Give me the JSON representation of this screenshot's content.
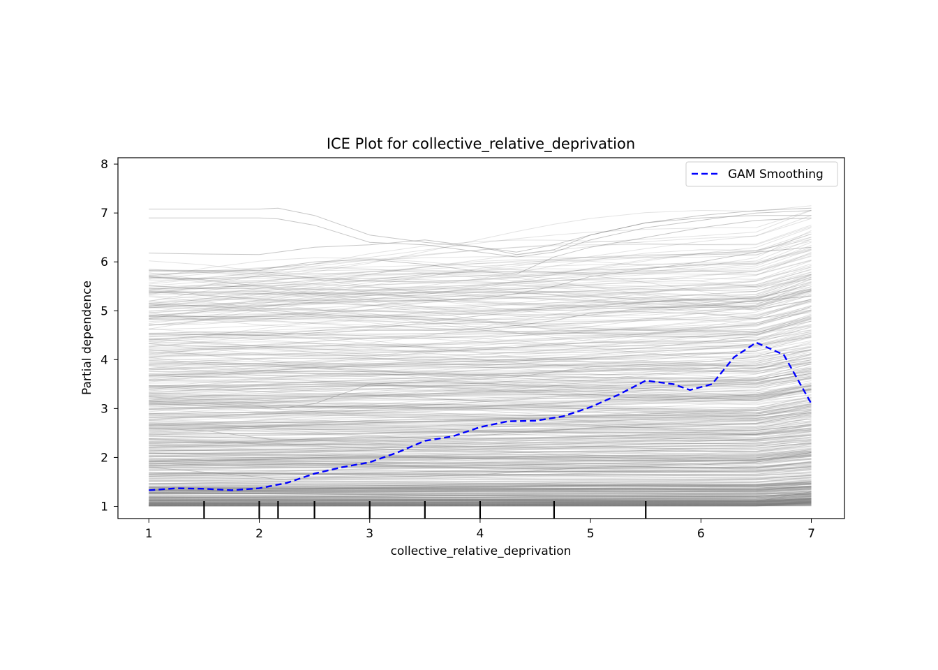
{
  "chart_data": {
    "type": "line",
    "title": "ICE Plot for collective_relative_deprivation",
    "xlabel": "collective_relative_deprivation",
    "ylabel": "Partial dependence",
    "xlim": [
      0.72,
      7.3
    ],
    "ylim": [
      0.75,
      8.13
    ],
    "x_ticks": [
      "1",
      "2",
      "3",
      "4",
      "5",
      "6",
      "7"
    ],
    "y_ticks": [
      "1",
      "2",
      "3",
      "4",
      "5",
      "6",
      "7",
      "8"
    ],
    "grid": false,
    "legend_position": "top-right",
    "legend": [
      {
        "label": "GAM Smoothing",
        "color": "#0000ff",
        "style": "dashed"
      }
    ],
    "ice_line_color": "#808080",
    "ice_grid_x": [
      1,
      1.5,
      2,
      2.17,
      2.5,
      3,
      3.5,
      4,
      4.33,
      4.67,
      5,
      5.5,
      6,
      6.5,
      7
    ],
    "ice_curves_shown": [
      {
        "y": [
          7.08,
          7.08,
          7.08,
          7.1,
          6.95,
          6.55,
          6.4,
          6.3,
          6.15,
          6.25,
          6.55,
          6.8,
          6.95,
          7.05,
          7.1
        ]
      },
      {
        "y": [
          6.9,
          6.9,
          6.9,
          6.88,
          6.75,
          6.4,
          6.35,
          6.2,
          6.1,
          6.2,
          6.45,
          6.7,
          6.85,
          7.0,
          7.05
        ]
      },
      {
        "y": [
          6.18,
          6.16,
          6.15,
          6.2,
          6.3,
          6.35,
          6.45,
          6.3,
          6.2,
          6.35,
          6.55,
          6.8,
          6.9,
          6.95,
          6.95
        ]
      },
      {
        "y": [
          5.82,
          5.82,
          5.82,
          5.9,
          6.0,
          6.05,
          5.95,
          5.8,
          5.75,
          6.1,
          6.3,
          6.5,
          6.7,
          6.85,
          6.9
        ]
      },
      {
        "y": [
          5.1,
          5.1,
          5.1,
          5.12,
          5.15,
          5.2,
          5.2,
          5.25,
          5.35,
          5.5,
          5.7,
          5.85,
          6.0,
          6.2,
          6.3
        ]
      },
      {
        "y": [
          4.52,
          4.52,
          4.5,
          4.5,
          4.55,
          4.6,
          4.6,
          4.62,
          4.7,
          4.8,
          4.95,
          5.05,
          5.1,
          5.2,
          5.3
        ]
      },
      {
        "y": [
          3.15,
          3.1,
          3.05,
          3.0,
          3.1,
          3.5,
          3.55,
          3.6,
          3.65,
          3.75,
          3.85,
          3.9,
          3.95,
          4.05,
          4.2
        ]
      },
      {
        "y": [
          2.6,
          2.55,
          2.4,
          2.35,
          2.38,
          2.4,
          2.42,
          2.45,
          2.5,
          2.55,
          2.6,
          2.62,
          2.65,
          2.7,
          2.9
        ]
      },
      {
        "y": [
          1.8,
          1.7,
          1.6,
          1.55,
          1.58,
          1.6,
          1.62,
          1.65,
          1.7,
          1.75,
          1.8,
          1.82,
          1.85,
          1.9,
          2.1
        ]
      },
      {
        "y": [
          1.02,
          1.02,
          1.02,
          1.02,
          1.02,
          1.02,
          1.03,
          1.03,
          1.04,
          1.05,
          1.06,
          1.07,
          1.08,
          1.1,
          1.3
        ]
      }
    ],
    "series": [
      {
        "name": "GAM Smoothing",
        "x": [
          1,
          1.25,
          1.5,
          1.75,
          2,
          2.25,
          2.5,
          2.75,
          3,
          3.25,
          3.5,
          3.75,
          4,
          4.25,
          4.5,
          4.75,
          5,
          5.25,
          5.5,
          5.75,
          5.9,
          6.1,
          6.3,
          6.5,
          6.75,
          7
        ],
        "y": [
          1.33,
          1.37,
          1.36,
          1.33,
          1.37,
          1.48,
          1.67,
          1.8,
          1.9,
          2.1,
          2.34,
          2.43,
          2.62,
          2.74,
          2.75,
          2.84,
          3.03,
          3.28,
          3.57,
          3.5,
          3.38,
          3.5,
          4.05,
          4.35,
          4.1,
          3.1
        ]
      }
    ],
    "rug_x": [
      1.5,
      2,
      2.17,
      2.5,
      3,
      3.5,
      4,
      4.67,
      5.5
    ]
  }
}
